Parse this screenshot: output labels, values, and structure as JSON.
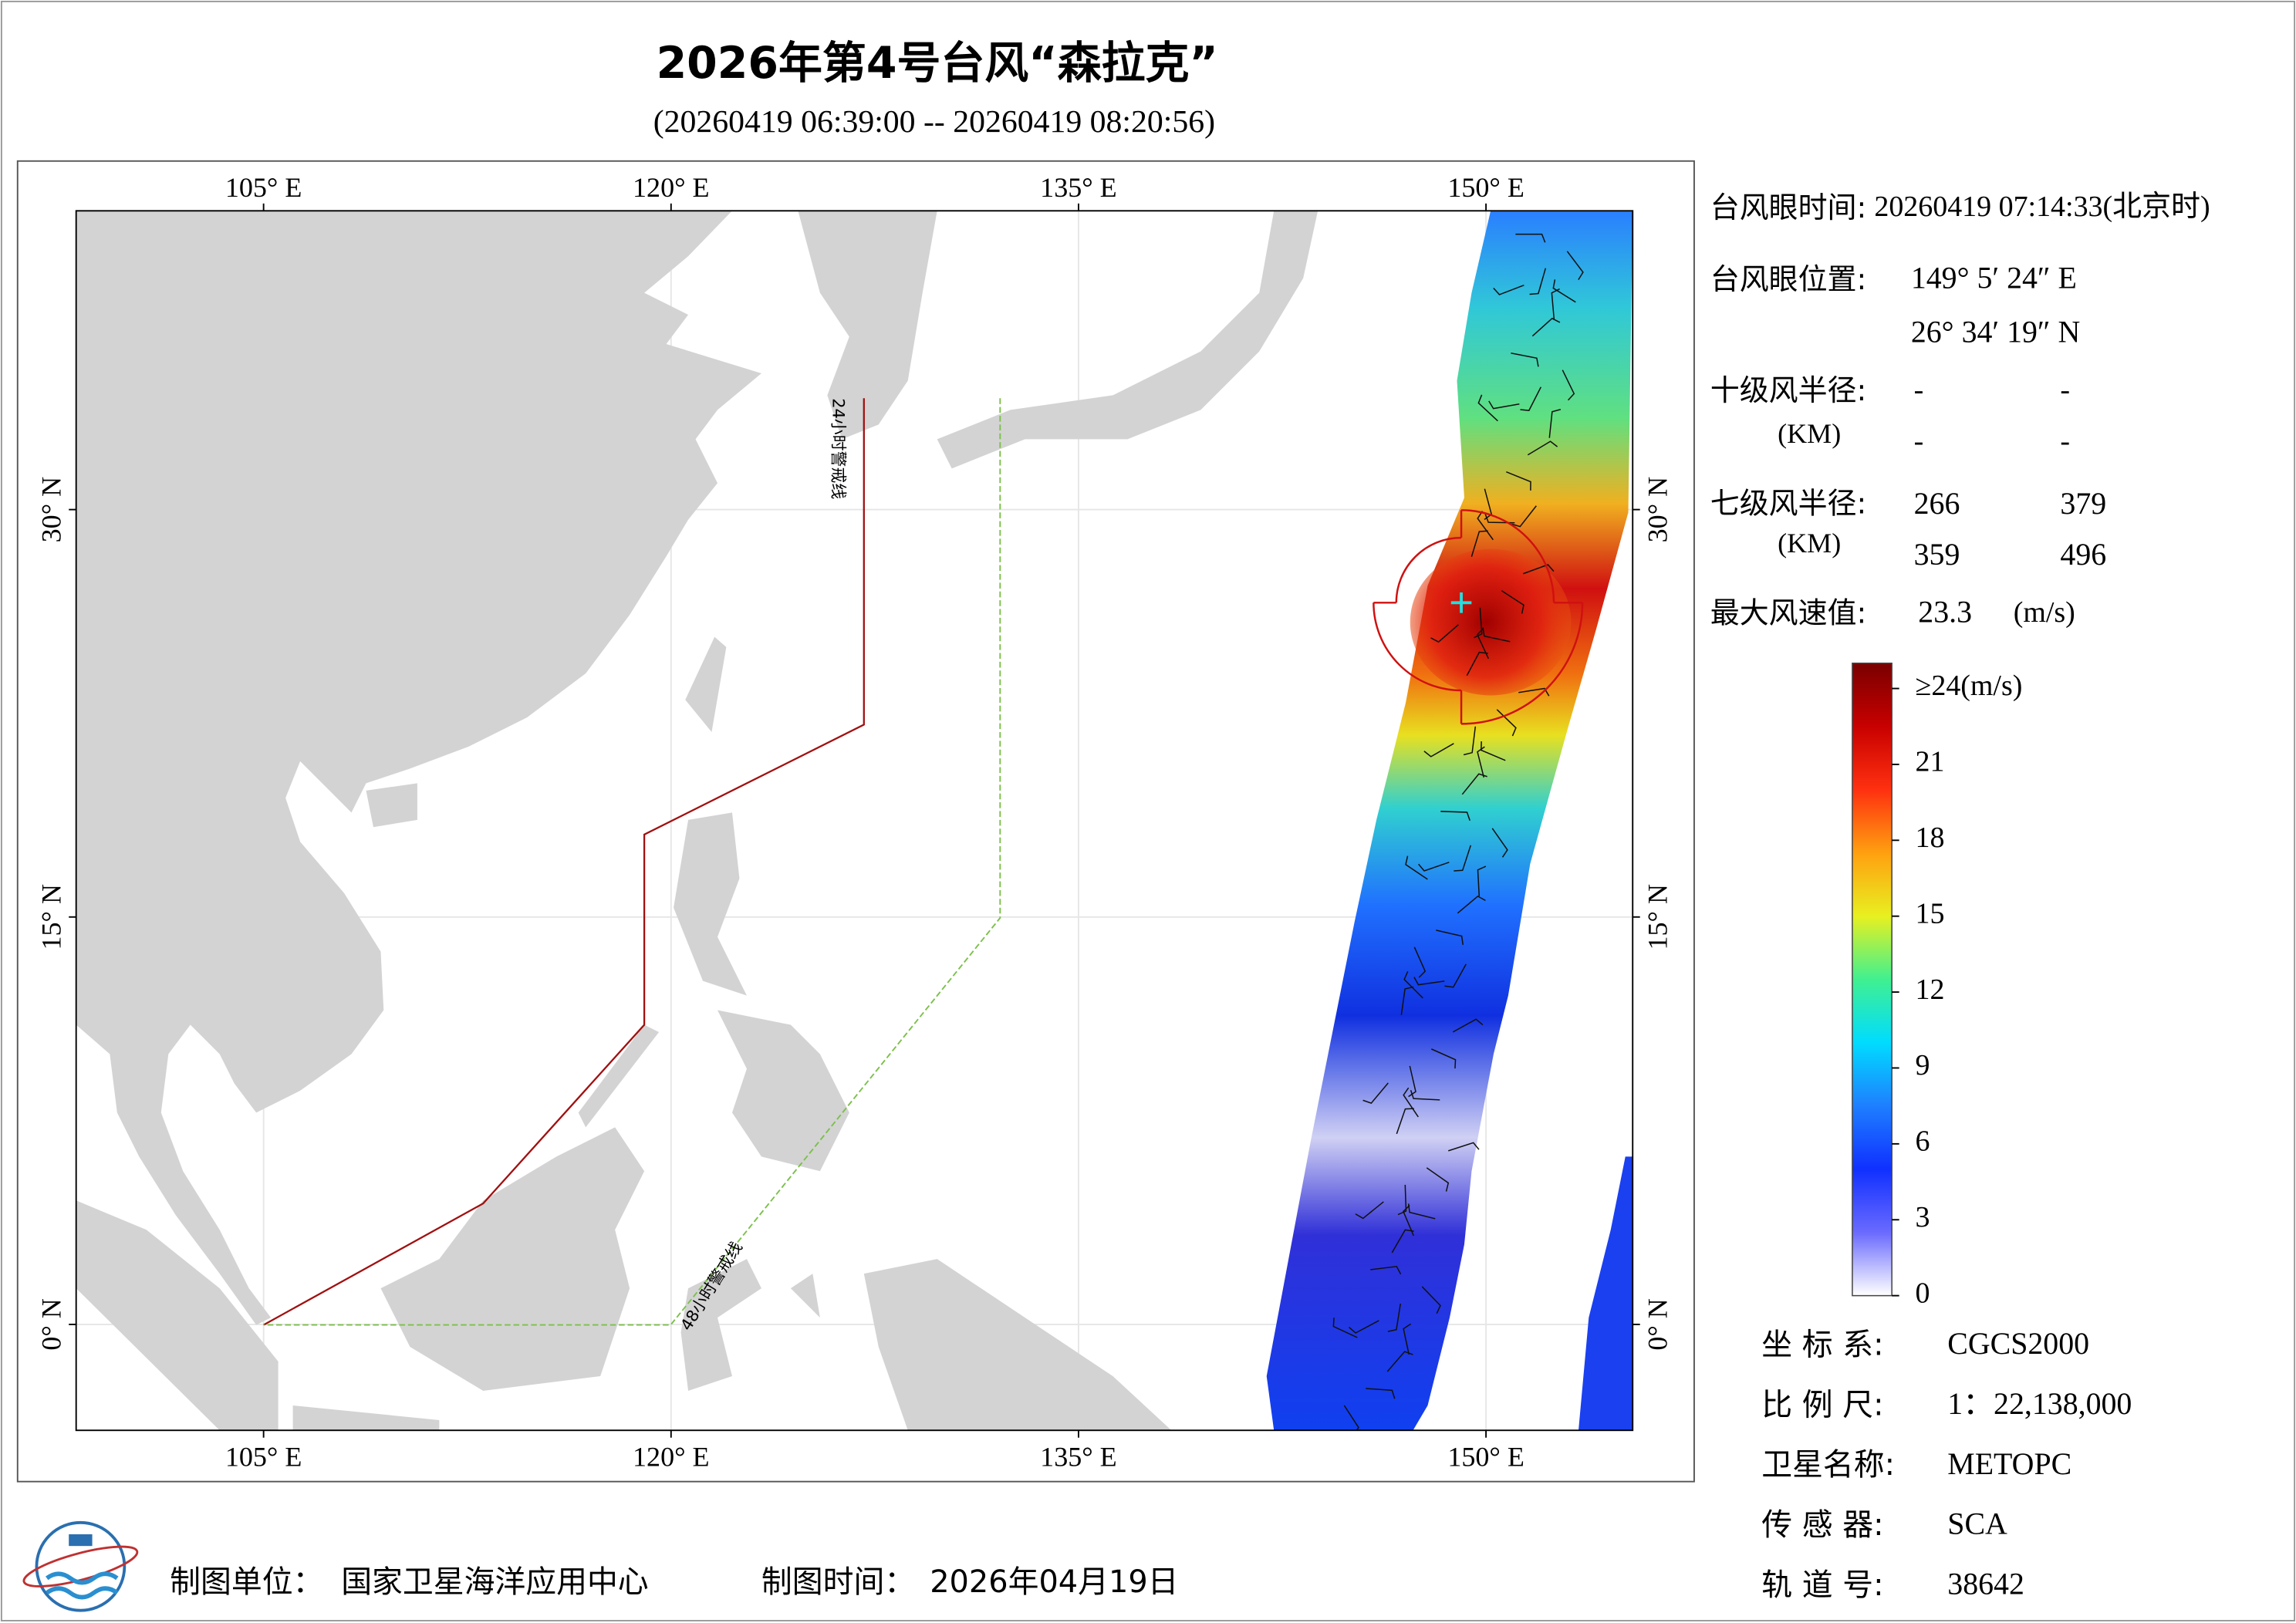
{
  "title": "2026年第4号台风“森拉克”",
  "subtitle": "(20260419 06:39:00 -- 20260419 08:20:56)",
  "map": {
    "xlim": [
      98.1,
      155.4
    ],
    "ylim": [
      -3.9,
      41.0
    ],
    "xticks": [
      {
        "value": 105,
        "label": "105° E"
      },
      {
        "value": 120,
        "label": "120° E"
      },
      {
        "value": 135,
        "label": "135° E"
      },
      {
        "value": 150,
        "label": "150° E"
      }
    ],
    "yticks": [
      {
        "value": 0,
        "label": "0° N"
      },
      {
        "value": 15,
        "label": "15° N"
      },
      {
        "value": 30,
        "label": "30° N"
      }
    ],
    "grid": true,
    "warning_lines": [
      {
        "label": "24小时警戒线",
        "color": "#a01010"
      },
      {
        "label": "48小时警戒线",
        "color": "#7cc04a"
      }
    ],
    "radius_color": "#d01010"
  },
  "info": {
    "eye_time": {
      "label": "台风眼时间:",
      "value": "20260419 07:14:33(北京时)"
    },
    "eye_position": {
      "label": "台风眼位置:",
      "lon": {
        "value": 149.09,
        "label": "149° 5′ 24″ E"
      },
      "lat": {
        "value": 26.572,
        "label": "26° 34′ 19″ N"
      }
    },
    "radius10": {
      "label": "十级风半径:",
      "unit": "(KM)",
      "values": [
        [
          "-",
          "-"
        ],
        [
          "-",
          "-"
        ]
      ]
    },
    "radius7": {
      "label": "七级风半径:",
      "unit": "(KM)",
      "values": [
        [
          266,
          379
        ],
        [
          359,
          496
        ]
      ]
    },
    "max_wind": {
      "label": "最大风速值:",
      "value": 23.3,
      "unit": "(m/s)"
    }
  },
  "colorbar": {
    "lim": [
      0,
      25
    ],
    "ticks": [
      0,
      3,
      6,
      9,
      12,
      15,
      18,
      21,
      {
        "value": 24,
        "label": "≥24(m/s)"
      }
    ],
    "colors": [
      "#ffffff",
      "#6a6aff",
      "#1030ff",
      "#1e7fff",
      "#00dcff",
      "#40f090",
      "#e8f020",
      "#ffa010",
      "#ff3010",
      "#c80000",
      "#7a0000"
    ]
  },
  "meta": [
    {
      "label": "坐 标 系:",
      "value": "CGCS2000"
    },
    {
      "label": "比 例 尺:",
      "value": "1：22,138,000"
    },
    {
      "label": "卫星名称:",
      "value": "METOPC"
    },
    {
      "label": "传 感 器:",
      "value": "SCA"
    },
    {
      "label": "轨 道 号:",
      "value": "38642"
    }
  ],
  "footer": {
    "unit_label": "制图单位：",
    "unit": "国家卫星海洋应用中心",
    "time_label": "制图时间：",
    "time": "2026年04月19日"
  }
}
